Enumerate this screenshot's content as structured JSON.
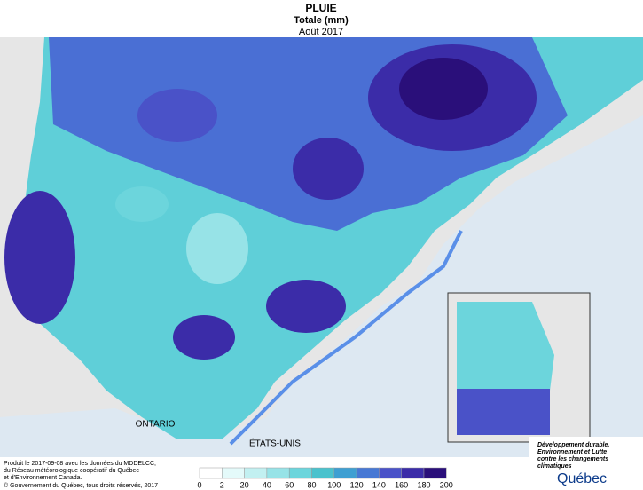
{
  "header": {
    "title": "PLUIE",
    "subtitle": "Totale (mm)",
    "period": "Août 2017"
  },
  "map": {
    "labels": [
      "ONTARIO",
      "ÉTATS-UNIS"
    ]
  },
  "legend": {
    "ticks": [
      0,
      2,
      20,
      40,
      60,
      80,
      100,
      120,
      140,
      160,
      180,
      200
    ],
    "colors": [
      "#ffffff",
      "#e4fafa",
      "#c2f0f1",
      "#97e3e7",
      "#6cd5dc",
      "#4ac2cd",
      "#3e9fd2",
      "#4778d4",
      "#4a52c8",
      "#3b2ca8",
      "#2a0f7a"
    ]
  },
  "credits": [
    "Produit le 2017-09-08 avec les données du MDDELCC,",
    "du Réseau météorologique coopératif du Québec",
    "et d'Environnement Canada.",
    "© Gouvernement du Québec, tous droits réservés, 2017"
  ],
  "logo": {
    "ministry": [
      "Développement durable,",
      "Environnement et Lutte",
      "contre les changements",
      "climatiques"
    ],
    "name": "Québec"
  }
}
